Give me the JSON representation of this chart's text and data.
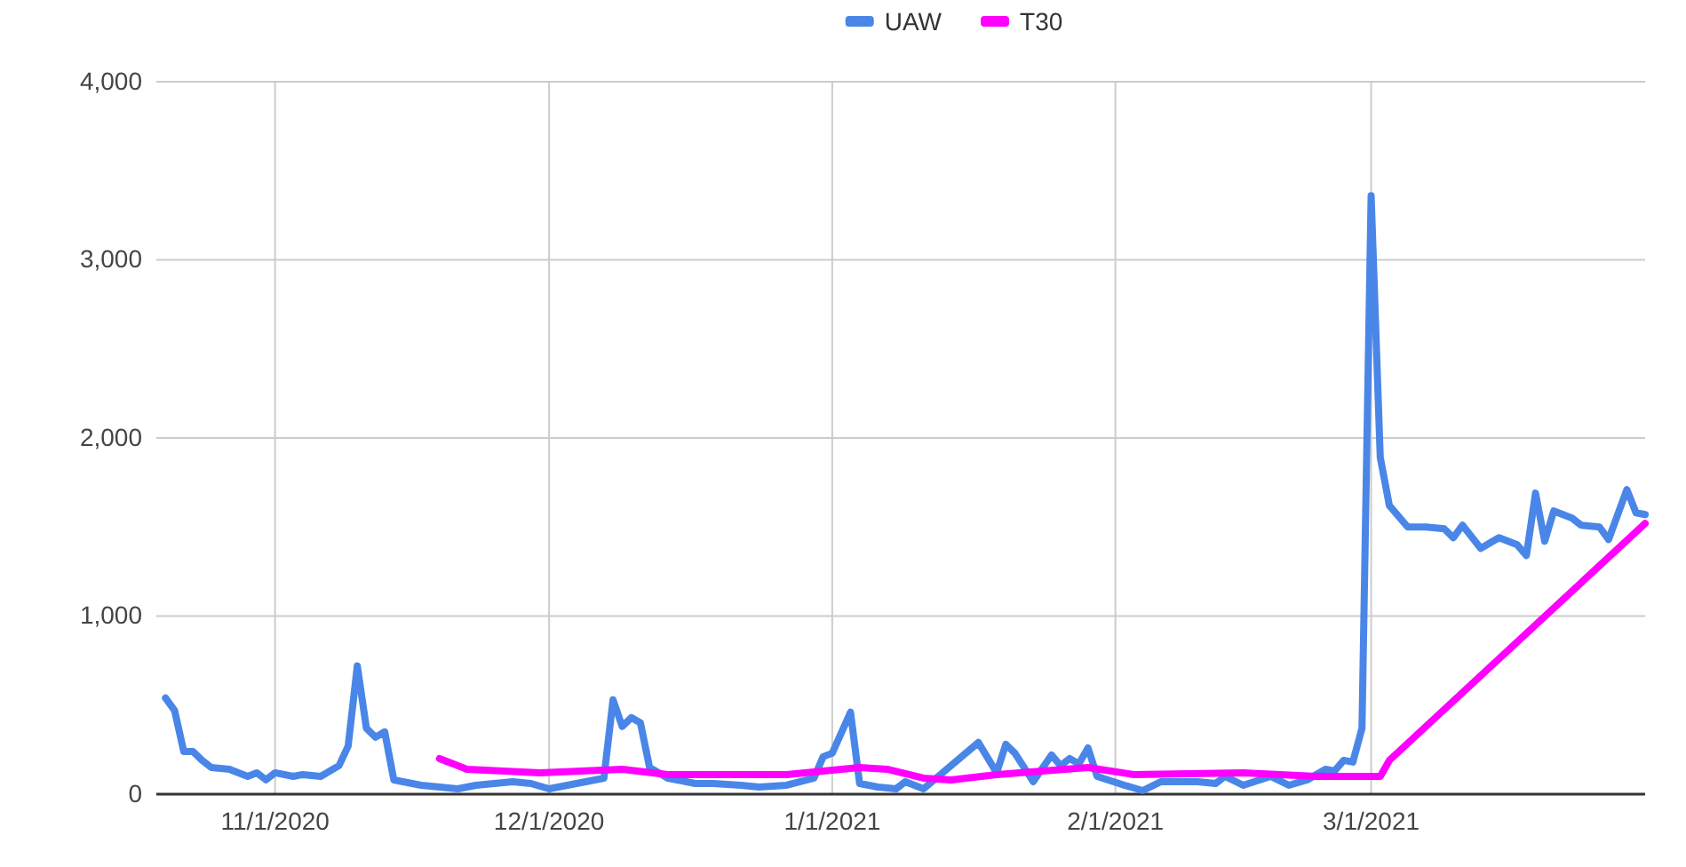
{
  "chart_data": {
    "type": "line",
    "legend": "top",
    "grid": true,
    "line_style": "solid",
    "xlim": [
      "2020-10-19",
      "2021-03-31"
    ],
    "xticks": [
      {
        "value": "2020-11-01",
        "label": "11/1/2020"
      },
      {
        "value": "2020-12-01",
        "label": "12/1/2020"
      },
      {
        "value": "2021-01-01",
        "label": "1/1/2021"
      },
      {
        "value": "2021-02-01",
        "label": "2/1/2021"
      },
      {
        "value": "2021-03-01",
        "label": "3/1/2021"
      }
    ],
    "ylim": [
      0,
      4000
    ],
    "yticks": [
      {
        "value": 0,
        "label": "0"
      },
      {
        "value": 1000,
        "label": "1,000"
      },
      {
        "value": 2000,
        "label": "2,000"
      },
      {
        "value": 3000,
        "label": "3,000"
      },
      {
        "value": 4000,
        "label": "4,000"
      }
    ],
    "series": [
      {
        "name": "UAW",
        "color": "#4a86e8",
        "x": [
          "2020-10-20",
          "2020-10-21",
          "2020-10-22",
          "2020-10-23",
          "2020-10-24",
          "2020-10-25",
          "2020-10-27",
          "2020-10-29",
          "2020-10-30",
          "2020-10-31",
          "2020-11-01",
          "2020-11-03",
          "2020-11-04",
          "2020-11-06",
          "2020-11-08",
          "2020-11-09",
          "2020-11-10",
          "2020-11-11",
          "2020-11-12",
          "2020-11-13",
          "2020-11-14",
          "2020-11-15",
          "2020-11-17",
          "2020-11-19",
          "2020-11-21",
          "2020-11-23",
          "2020-11-25",
          "2020-11-27",
          "2020-11-29",
          "2020-12-01",
          "2020-12-03",
          "2020-12-05",
          "2020-12-07",
          "2020-12-08",
          "2020-12-09",
          "2020-12-10",
          "2020-12-11",
          "2020-12-12",
          "2020-12-14",
          "2020-12-17",
          "2020-12-19",
          "2020-12-22",
          "2020-12-24",
          "2020-12-27",
          "2020-12-30",
          "2020-12-31",
          "2021-01-01",
          "2021-01-03",
          "2021-01-04",
          "2021-01-06",
          "2021-01-08",
          "2021-01-09",
          "2021-01-11",
          "2021-01-17",
          "2021-01-19",
          "2021-01-20",
          "2021-01-21",
          "2021-01-23",
          "2021-01-25",
          "2021-01-26",
          "2021-01-27",
          "2021-01-28",
          "2021-01-29",
          "2021-01-30",
          "2021-02-02",
          "2021-02-04",
          "2021-02-06",
          "2021-02-10",
          "2021-02-12",
          "2021-02-13",
          "2021-02-15",
          "2021-02-18",
          "2021-02-20",
          "2021-02-22",
          "2021-02-24",
          "2021-02-25",
          "2021-02-26",
          "2021-02-27",
          "2021-02-28",
          "2021-03-01",
          "2021-03-02",
          "2021-03-03",
          "2021-03-05",
          "2021-03-07",
          "2021-03-09",
          "2021-03-10",
          "2021-03-11",
          "2021-03-13",
          "2021-03-15",
          "2021-03-17",
          "2021-03-18",
          "2021-03-19",
          "2021-03-20",
          "2021-03-21",
          "2021-03-23",
          "2021-03-24",
          "2021-03-26",
          "2021-03-27",
          "2021-03-29",
          "2021-03-30",
          "2021-03-31"
        ],
        "values": [
          540,
          470,
          240,
          240,
          190,
          150,
          140,
          100,
          120,
          80,
          120,
          100,
          110,
          100,
          160,
          270,
          720,
          370,
          320,
          350,
          80,
          70,
          50,
          40,
          30,
          50,
          60,
          70,
          60,
          30,
          50,
          70,
          90,
          530,
          380,
          430,
          400,
          150,
          90,
          60,
          60,
          50,
          40,
          50,
          90,
          210,
          230,
          460,
          60,
          40,
          30,
          70,
          30,
          290,
          120,
          280,
          230,
          70,
          220,
          160,
          200,
          170,
          260,
          100,
          50,
          20,
          70,
          70,
          60,
          100,
          50,
          100,
          50,
          80,
          140,
          130,
          190,
          180,
          370,
          3360,
          1890,
          1620,
          1500,
          1500,
          1490,
          1440,
          1510,
          1380,
          1440,
          1400,
          1340,
          1690,
          1420,
          1590,
          1550,
          1510,
          1500,
          1430,
          1710,
          1580,
          1570
        ]
      },
      {
        "name": "T30",
        "color": "#ff00ff",
        "x": [
          "2020-11-19",
          "2020-11-22",
          "2020-11-30",
          "2020-12-09",
          "2020-12-14",
          "2020-12-27",
          "2021-01-04",
          "2021-01-07",
          "2021-01-11",
          "2021-01-14",
          "2021-01-19",
          "2021-01-29",
          "2021-02-03",
          "2021-02-15",
          "2021-02-23",
          "2021-03-02",
          "2021-03-03",
          "2021-03-31"
        ],
        "values": [
          200,
          140,
          120,
          140,
          110,
          110,
          150,
          140,
          90,
          80,
          110,
          150,
          110,
          120,
          100,
          100,
          190,
          1520
        ]
      }
    ]
  }
}
